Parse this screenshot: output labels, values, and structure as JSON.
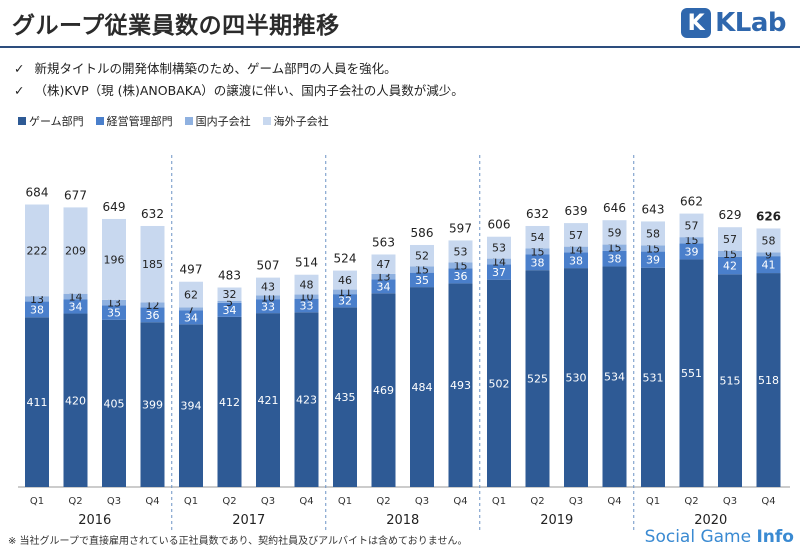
{
  "header": {
    "title": "グループ従業員数の四半期推移",
    "logo_text": "KLab",
    "logo_mark": "K"
  },
  "bullets": [
    "新規タイトルの開発体制構築のため、ゲーム部門の人員を強化。",
    "（株)KVP（現 (株)ANOBAKA）の譲渡に伴い、国内子会社の人員数が減少。"
  ],
  "bullet_mark": "✓",
  "footnote": "※ 当社グループで直接雇用されている正社員数であり、契約社員及びアルバイトは含めておりません。",
  "watermark": {
    "text": "Social Game ",
    "bold": "Info"
  },
  "colors": {
    "game": "#2e5a95",
    "mgmt": "#4a7fcb",
    "domestic": "#8fb1e0",
    "overseas": "#c8d8ef",
    "divider": "#6d93c5"
  },
  "chart_data": {
    "type": "bar",
    "stacked": true,
    "categories": [
      "Q1",
      "Q2",
      "Q3",
      "Q4",
      "Q1",
      "Q2",
      "Q3",
      "Q4",
      "Q1",
      "Q2",
      "Q3",
      "Q4",
      "Q1",
      "Q2",
      "Q3",
      "Q4",
      "Q1",
      "Q2",
      "Q3",
      "Q4"
    ],
    "year_groups": [
      "2016",
      "2017",
      "2018",
      "2019",
      "2020"
    ],
    "series": [
      {
        "name": "ゲーム部門",
        "values": [
          411,
          420,
          405,
          399,
          394,
          412,
          421,
          423,
          435,
          469,
          484,
          493,
          502,
          525,
          530,
          534,
          531,
          551,
          515,
          518
        ]
      },
      {
        "name": "経営管理部門",
        "values": [
          38,
          34,
          35,
          36,
          34,
          34,
          33,
          33,
          32,
          34,
          35,
          36,
          37,
          38,
          38,
          38,
          39,
          39,
          42,
          41
        ]
      },
      {
        "name": "国内子会社",
        "values": [
          13,
          14,
          13,
          12,
          7,
          5,
          10,
          10,
          11,
          13,
          15,
          15,
          14,
          15,
          14,
          15,
          15,
          15,
          15,
          9
        ]
      },
      {
        "name": "海外子会社",
        "values": [
          222,
          209,
          196,
          185,
          62,
          32,
          43,
          48,
          46,
          47,
          52,
          53,
          53,
          54,
          57,
          59,
          58,
          57,
          57,
          58
        ]
      }
    ],
    "totals": [
      684,
      677,
      649,
      632,
      497,
      483,
      507,
      514,
      524,
      563,
      586,
      597,
      606,
      632,
      639,
      646,
      643,
      662,
      629,
      626
    ],
    "highlight_total_index": 19,
    "ylim": [
      0,
      700
    ]
  }
}
